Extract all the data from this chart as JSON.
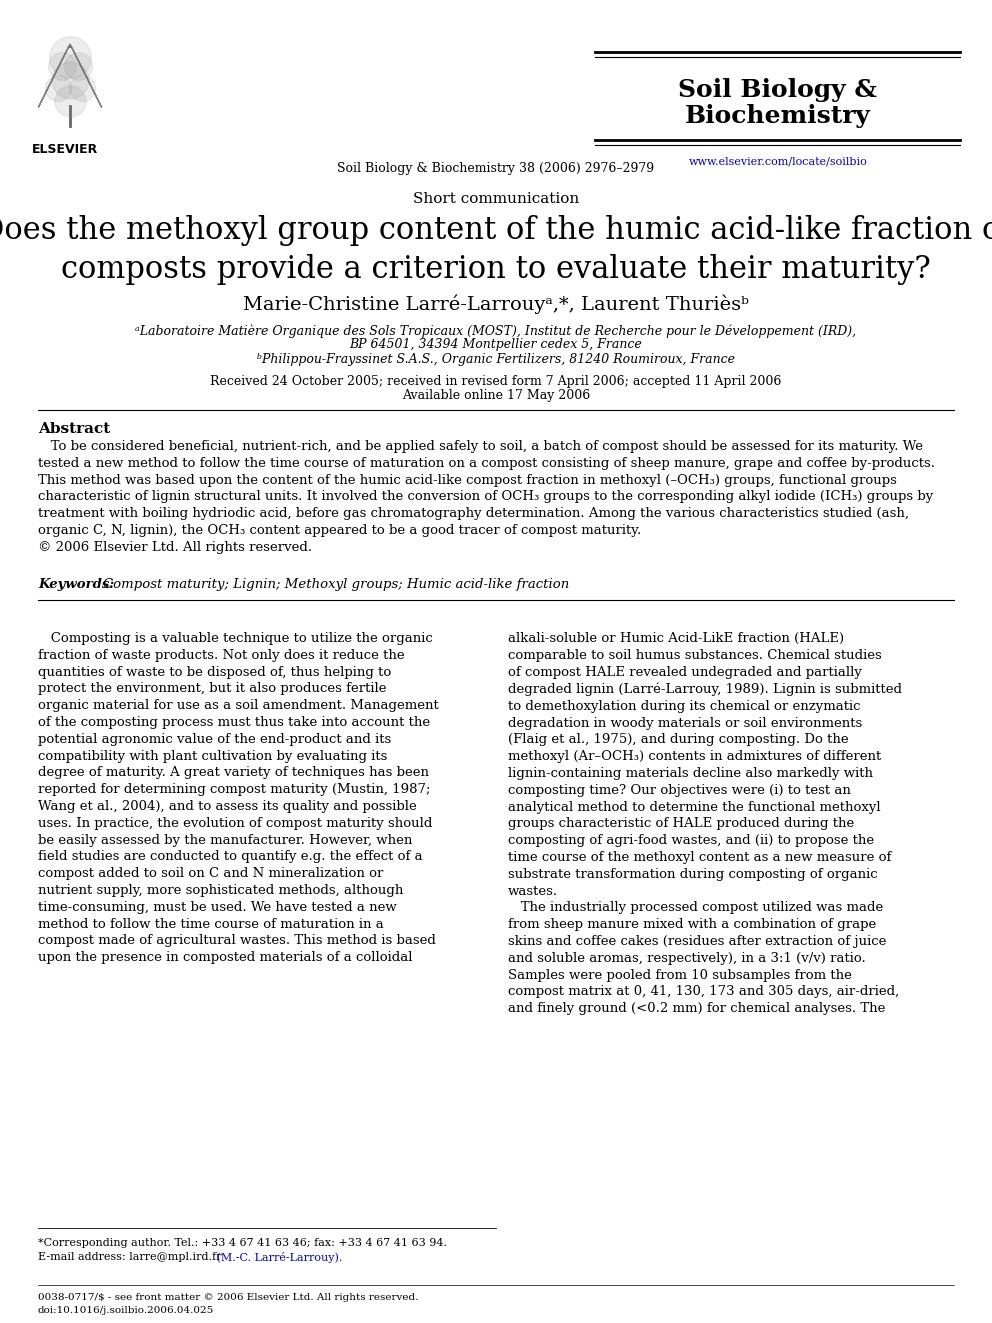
{
  "bg_color": "#ffffff",
  "page_width": 9.92,
  "page_height": 13.23,
  "dpi": 100,
  "header": {
    "journal_name_line1": "Soil Biology &",
    "journal_name_line2": "Biochemistry",
    "journal_name_color": "#000000",
    "journal_name_fontsize": 18,
    "journal_bar_color": "#000000",
    "journal_url": "www.elsevier.com/locate/soilbio",
    "journal_url_color": "#0000cc",
    "journal_citation": "Soil Biology & Biochemistry 38 (2006) 2976–2979",
    "journal_citation_fontsize": 9,
    "elsevier_text": "ELSEVIER",
    "elsevier_fontsize": 9
  },
  "article_type": "Short communication",
  "article_type_fontsize": 11,
  "title": "Does the methoxyl group content of the humic acid-like fraction of\ncomposts provide a criterion to evaluate their maturity?",
  "title_fontsize": 22,
  "authors": "Marie-Christine Larré-Larrouyᵃ,*, Laurent Thurièsᵇ",
  "authors_fontsize": 14,
  "affil1": "ᵃLaboratoire Matière Organique des Sols Tropicaux (MOST), Institut de Recherche pour le Développement (IRD),",
  "affil2": "BP 64501, 34394 Montpellier cedex 5, France",
  "affil3": "ᵇPhilippou-Frayssinet S.A.S., Organic Fertilizers, 81240 Roumiroux, France",
  "affil_fontsize": 9,
  "received": "Received 24 October 2005; received in revised form 7 April 2006; accepted 11 April 2006",
  "available": "Available online 17 May 2006",
  "dates_fontsize": 9,
  "abstract_header": "Abstract",
  "abstract_header_fontsize": 11,
  "abstract_text": "   To be considered beneficial, nutrient-rich, and be applied safely to soil, a batch of compost should be assessed for its maturity. We\ntested a new method to follow the time course of maturation on a compost consisting of sheep manure, grape and coffee by-products.\nThis method was based upon the content of the humic acid-like compost fraction in methoxyl (–OCH₃) groups, functional groups\ncharacteristic of lignin structural units. It involved the conversion of OCH₃ groups to the corresponding alkyl iodide (ICH₃) groups by\ntreatment with boiling hydriodic acid, before gas chromatography determination. Among the various characteristics studied (ash,\norganic C, N, lignin), the OCH₃ content appeared to be a good tracer of compost maturity.\n© 2006 Elsevier Ltd. All rights reserved.",
  "abstract_fontsize": 9.5,
  "keywords_label": "Keywords: ",
  "keywords_text": "Compost maturity; Lignin; Methoxyl groups; Humic acid-like fraction",
  "keywords_fontsize": 9.5,
  "col1_text": "   Composting is a valuable technique to utilize the organic\nfraction of waste products. Not only does it reduce the\nquantities of waste to be disposed of, thus helping to\nprotect the environment, but it also produces fertile\norganic material for use as a soil amendment. Management\nof the composting process must thus take into account the\npotential agronomic value of the end-product and its\ncompatibility with plant cultivation by evaluating its\ndegree of maturity. A great variety of techniques has been\nreported for determining compost maturity (Mustin, 1987;\nWang et al., 2004), and to assess its quality and possible\nuses. In practice, the evolution of compost maturity should\nbe easily assessed by the manufacturer. However, when\nfield studies are conducted to quantify e.g. the effect of a\ncompost added to soil on C and N mineralization or\nnutrient supply, more sophisticated methods, although\ntime-consuming, must be used. We have tested a new\nmethod to follow the time course of maturation in a\ncompost made of agricultural wastes. This method is based\nupon the presence in composted materials of a colloidal",
  "col1_fontsize": 9.5,
  "col2_text": "alkali-soluble or Humic Acid-LikE fraction (HALE)\ncomparable to soil humus substances. Chemical studies\nof compost HALE revealed undegraded and partially\ndegraded lignin (Larré-Larrouy, 1989). Lignin is submitted\nto demethoxylation during its chemical or enzymatic\ndegradation in woody materials or soil environments\n(Flaig et al., 1975), and during composting. Do the\nmethoxyl (Ar–OCH₃) contents in admixtures of different\nlignin-containing materials decline also markedly with\ncomposting time? Our objectives were (i) to test an\nanalytical method to determine the functional methoxyl\ngroups characteristic of HALE produced during the\ncomposting of agri-food wastes, and (ii) to propose the\ntime course of the methoxyl content as a new measure of\nsubstrate transformation during composting of organic\nwastes.\n   The industrially processed compost utilized was made\nfrom sheep manure mixed with a combination of grape\nskins and coffee cakes (residues after extraction of juice\nand soluble aromas, respectively), in a 3:1 (v/v) ratio.\nSamples were pooled from 10 subsamples from the\ncompost matrix at 0, 41, 130, 173 and 305 days, air-dried,\nand finely ground (<0.2 mm) for chemical analyses. The",
  "col2_fontsize": 9.5,
  "footer_note1": "*Corresponding author. Tel.: +33 4 67 41 63 46; fax: +33 4 67 41 63 94.",
  "footer_note2": "E-mail address: larre@mpl.ird.fr (M.-C. Larré-Larrouy).",
  "footer_fontsize": 8,
  "footer_line1": "0038-0717/$ - see front matter © 2006 Elsevier Ltd. All rights reserved.",
  "footer_line2": "doi:10.1016/j.soilbio.2006.04.025",
  "footer_line_fontsize": 7.5
}
